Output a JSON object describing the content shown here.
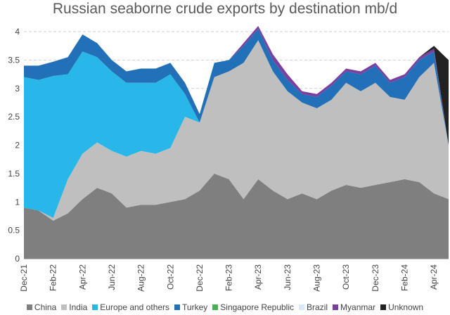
{
  "chart_data": {
    "type": "area",
    "stacked": true,
    "title": "Russian seaborne crude exports by destination mb/d",
    "xlabel": "",
    "ylabel": "",
    "ylim": [
      0,
      4
    ],
    "y_ticks": [
      0,
      0.5,
      1,
      1.5,
      2,
      2.5,
      3,
      3.5,
      4
    ],
    "y_tick_labels": [
      "0",
      "0.5",
      "1",
      "1.5",
      "2",
      "2.5",
      "3",
      "3.5",
      "4"
    ],
    "gridlines": "horizontal dashed",
    "legend_position": "bottom",
    "x_tick_labels": [
      "Dec-21",
      "Feb-22",
      "Apr-22",
      "Jun-22",
      "Aug-22",
      "Oct-22",
      "Dec-22",
      "Feb-23",
      "Apr-23",
      "Jun-23",
      "Aug-23",
      "Oct-23",
      "Dec-23",
      "Feb-24",
      "Apr-24"
    ],
    "x": [
      "Dec-21",
      "Jan-22",
      "Feb-22",
      "Mar-22",
      "Apr-22",
      "May-22",
      "Jun-22",
      "Jul-22",
      "Aug-22",
      "Sep-22",
      "Oct-22",
      "Nov-22",
      "Dec-22",
      "Jan-23",
      "Feb-23",
      "Mar-23",
      "Apr-23",
      "May-23",
      "Jun-23",
      "Jul-23",
      "Aug-23",
      "Sep-23",
      "Oct-23",
      "Nov-23",
      "Dec-23",
      "Jan-24",
      "Feb-24",
      "Mar-24",
      "Apr-24",
      "May-24"
    ],
    "series": [
      {
        "name": "China",
        "color": "#7f7f7f",
        "values": [
          0.9,
          0.85,
          0.67,
          0.8,
          1.05,
          1.25,
          1.15,
          0.9,
          0.95,
          0.95,
          1.0,
          1.05,
          1.2,
          1.5,
          1.4,
          1.05,
          1.4,
          1.2,
          1.05,
          1.15,
          1.05,
          1.2,
          1.3,
          1.25,
          1.3,
          1.35,
          1.4,
          1.35,
          1.15,
          1.05
        ]
      },
      {
        "name": "India",
        "color": "#bfbfbf",
        "values": [
          0.0,
          0.0,
          0.05,
          0.6,
          0.8,
          0.8,
          0.75,
          0.9,
          0.95,
          0.9,
          0.95,
          1.45,
          1.2,
          1.7,
          1.9,
          2.4,
          2.45,
          2.1,
          1.9,
          1.6,
          1.6,
          1.6,
          1.8,
          1.7,
          1.8,
          1.5,
          1.4,
          1.85,
          2.3,
          0.95
        ]
      },
      {
        "name": "Europe and others",
        "color": "#29b6e8",
        "values": [
          2.3,
          2.3,
          2.5,
          1.85,
          1.8,
          1.5,
          1.4,
          1.3,
          1.2,
          1.25,
          1.3,
          0.4,
          0.0,
          0.0,
          0.0,
          0.0,
          0.0,
          0.0,
          0.0,
          0.0,
          0.0,
          0.0,
          0.0,
          0.0,
          0.0,
          0.0,
          0.0,
          0.0,
          0.0,
          0.0
        ]
      },
      {
        "name": "Turkey",
        "color": "#2170b8",
        "values": [
          0.2,
          0.25,
          0.25,
          0.3,
          0.3,
          0.25,
          0.2,
          0.2,
          0.25,
          0.25,
          0.2,
          0.2,
          0.15,
          0.25,
          0.2,
          0.3,
          0.2,
          0.2,
          0.2,
          0.15,
          0.2,
          0.25,
          0.2,
          0.3,
          0.3,
          0.25,
          0.4,
          0.3,
          0.2,
          0.0
        ]
      },
      {
        "name": "Singapore Republic",
        "color": "#4caf50",
        "values": [
          0,
          0,
          0,
          0,
          0,
          0,
          0,
          0,
          0,
          0,
          0,
          0,
          0,
          0,
          0,
          0,
          0,
          0,
          0,
          0,
          0,
          0,
          0,
          0,
          0,
          0,
          0,
          0,
          0,
          0
        ]
      },
      {
        "name": "Brazil",
        "color": "#dbe9f7",
        "values": [
          0,
          0,
          0,
          0,
          0,
          0,
          0,
          0,
          0,
          0,
          0,
          0,
          0,
          0,
          0,
          0,
          0,
          0,
          0,
          0,
          0,
          0,
          0,
          0,
          0,
          0,
          0,
          0,
          0,
          0
        ]
      },
      {
        "name": "Myanmar",
        "color": "#7b3fa0",
        "values": [
          0,
          0,
          0,
          0,
          0,
          0,
          0,
          0,
          0,
          0,
          0,
          0,
          0,
          0,
          0,
          0.05,
          0.05,
          0.1,
          0.1,
          0.05,
          0.05,
          0.05,
          0.05,
          0.05,
          0.05,
          0.05,
          0.05,
          0.05,
          0.05,
          0.0
        ]
      },
      {
        "name": "Unknown",
        "color": "#222222",
        "values": [
          0,
          0,
          0,
          0,
          0,
          0,
          0,
          0,
          0,
          0,
          0,
          0,
          0,
          0,
          0,
          0,
          0,
          0,
          0,
          0,
          0,
          0,
          0,
          0,
          0,
          0,
          0,
          0,
          0.05,
          1.5
        ]
      }
    ]
  }
}
